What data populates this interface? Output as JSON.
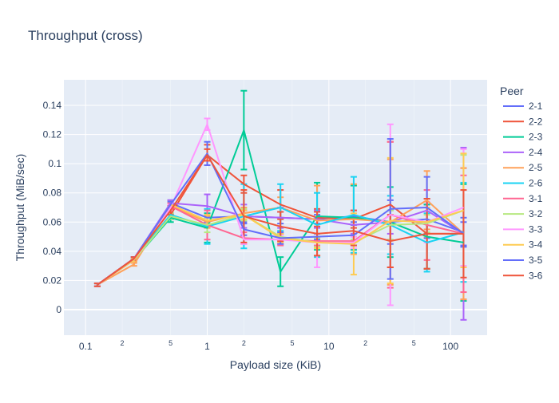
{
  "chart_data": {
    "type": "line",
    "title": "Throughput (cross)",
    "xlabel": "Payload size (KiB)",
    "ylabel": "Throughput (MiB/sec)",
    "x_scale": "log",
    "xlim": [
      0.0663,
      200
    ],
    "ylim": [
      -0.0175,
      0.1575
    ],
    "x_major_ticks": [
      {
        "value": 0.1,
        "label": "0.1"
      },
      {
        "value": 1,
        "label": "1"
      },
      {
        "value": 10,
        "label": "10"
      },
      {
        "value": 100,
        "label": "100"
      }
    ],
    "x_minor_ticks": [
      {
        "value": 0.2,
        "label": "2"
      },
      {
        "value": 0.5,
        "label": "5"
      },
      {
        "value": 2,
        "label": "2"
      },
      {
        "value": 5,
        "label": "5"
      },
      {
        "value": 20,
        "label": "2"
      },
      {
        "value": 50,
        "label": "5"
      }
    ],
    "y_ticks": [
      {
        "value": 0,
        "label": "0"
      },
      {
        "value": 0.02,
        "label": "0.02"
      },
      {
        "value": 0.04,
        "label": "0.04"
      },
      {
        "value": 0.06,
        "label": "0.06"
      },
      {
        "value": 0.08,
        "label": "0.08"
      },
      {
        "value": 0.1,
        "label": "0.1"
      },
      {
        "value": 0.12,
        "label": "0.12"
      },
      {
        "value": 0.14,
        "label": "0.14"
      }
    ],
    "legend_title": "Peer",
    "legend_position": "right",
    "x": [
      0.125,
      0.25,
      0.5,
      1,
      2,
      4,
      8,
      16,
      32,
      64,
      128
    ],
    "series": [
      {
        "name": "2-1",
        "color": "#636efa",
        "values": [
          0.017,
          0.035,
          0.073,
          0.063,
          0.064,
          0.063,
          0.062,
          0.064,
          0.06,
          0.062,
          0.053
        ],
        "errors": [
          0.001,
          0.001,
          0.002,
          0.003,
          0.004,
          0.004,
          0.003,
          0.004,
          0.015,
          0.01,
          0.01
        ]
      },
      {
        "name": "2-2",
        "color": "#EF553B",
        "values": [
          0.017,
          0.035,
          0.065,
          0.106,
          0.086,
          0.072,
          0.063,
          0.062,
          0.072,
          0.052,
          0.052
        ],
        "errors": [
          0.001,
          0.001,
          0.003,
          0.007,
          0.006,
          0.01,
          0.006,
          0.006,
          0.043,
          0.024,
          0.045
        ]
      },
      {
        "name": "2-3",
        "color": "#00cc96",
        "values": [
          0.017,
          0.034,
          0.063,
          0.056,
          0.123,
          0.026,
          0.064,
          0.063,
          0.06,
          0.05,
          0.046
        ],
        "errors": [
          0.001,
          0.001,
          0.003,
          0.01,
          0.027,
          0.01,
          0.023,
          0.022,
          0.024,
          0.022,
          0.04
        ]
      },
      {
        "name": "2-4",
        "color": "#ab63fa",
        "values": [
          0.017,
          0.035,
          0.073,
          0.071,
          0.064,
          0.063,
          0.062,
          0.058,
          0.06,
          0.068,
          0.052
        ],
        "errors": [
          0.001,
          0.001,
          0.002,
          0.008,
          0.008,
          0.007,
          0.006,
          0.006,
          0.008,
          0.008,
          0.059
        ]
      },
      {
        "name": "2-5",
        "color": "#FFA15A",
        "values": [
          0.017,
          0.031,
          0.071,
          0.06,
          0.066,
          0.07,
          0.061,
          0.062,
          0.06,
          0.075,
          0.052
        ],
        "errors": [
          0.001,
          0.001,
          0.002,
          0.004,
          0.004,
          0.007,
          0.024,
          0.024,
          0.043,
          0.02,
          0.045
        ]
      },
      {
        "name": "2-6",
        "color": "#19d3f3",
        "values": [
          0.017,
          0.035,
          0.065,
          0.057,
          0.064,
          0.07,
          0.058,
          0.065,
          0.058,
          0.046,
          0.053
        ],
        "errors": [
          0.001,
          0.001,
          0.003,
          0.012,
          0.022,
          0.016,
          0.022,
          0.026,
          0.02,
          0.02,
          0.034
        ]
      },
      {
        "name": "3-1",
        "color": "#FF6692",
        "values": [
          0.017,
          0.035,
          0.071,
          0.058,
          0.049,
          0.048,
          0.047,
          0.047,
          0.065,
          0.058,
          0.052
        ],
        "errors": [
          0.001,
          0.001,
          0.002,
          0.01,
          0.004,
          0.004,
          0.003,
          0.003,
          0.05,
          0.024,
          0.04
        ]
      },
      {
        "name": "3-2",
        "color": "#B6E880",
        "values": [
          0.017,
          0.034,
          0.064,
          0.058,
          0.065,
          0.05,
          0.046,
          0.046,
          0.058,
          0.059,
          0.068
        ],
        "errors": [
          0.001,
          0.001,
          0.002,
          0.005,
          0.004,
          0.003,
          0.003,
          0.002,
          0.01,
          0.006,
          0.038
        ]
      },
      {
        "name": "3-3",
        "color": "#FF97FF",
        "values": [
          0.017,
          0.034,
          0.07,
          0.127,
          0.048,
          0.048,
          0.046,
          0.046,
          0.065,
          0.06,
          0.07
        ],
        "errors": [
          0.001,
          0.001,
          0.002,
          0.004,
          0.003,
          0.003,
          0.017,
          0.004,
          0.062,
          0.014,
          0.04
        ]
      },
      {
        "name": "3-4",
        "color": "#FECB52",
        "values": [
          0.017,
          0.034,
          0.072,
          0.061,
          0.065,
          0.049,
          0.046,
          0.045,
          0.061,
          0.06,
          0.068
        ],
        "errors": [
          0.001,
          0.001,
          0.002,
          0.004,
          0.003,
          0.003,
          0.004,
          0.021,
          0.043,
          0.01,
          0.039
        ]
      },
      {
        "name": "3-5",
        "color": "#636efa",
        "values": [
          0.017,
          0.035,
          0.072,
          0.107,
          0.055,
          0.049,
          0.05,
          0.051,
          0.069,
          0.07,
          0.052
        ],
        "errors": [
          0.001,
          0.001,
          0.002,
          0.008,
          0.004,
          0.004,
          0.002,
          0.007,
          0.048,
          0.021,
          0.008
        ]
      },
      {
        "name": "3-6",
        "color": "#EF553B",
        "values": [
          0.017,
          0.035,
          0.068,
          0.106,
          0.064,
          0.057,
          0.052,
          0.054,
          0.047,
          0.052,
          0.052
        ],
        "errors": [
          0.001,
          0.001,
          0.003,
          0.004,
          0.018,
          0.01,
          0.015,
          0.01,
          0.018,
          0.024,
          0.03
        ]
      }
    ]
  }
}
